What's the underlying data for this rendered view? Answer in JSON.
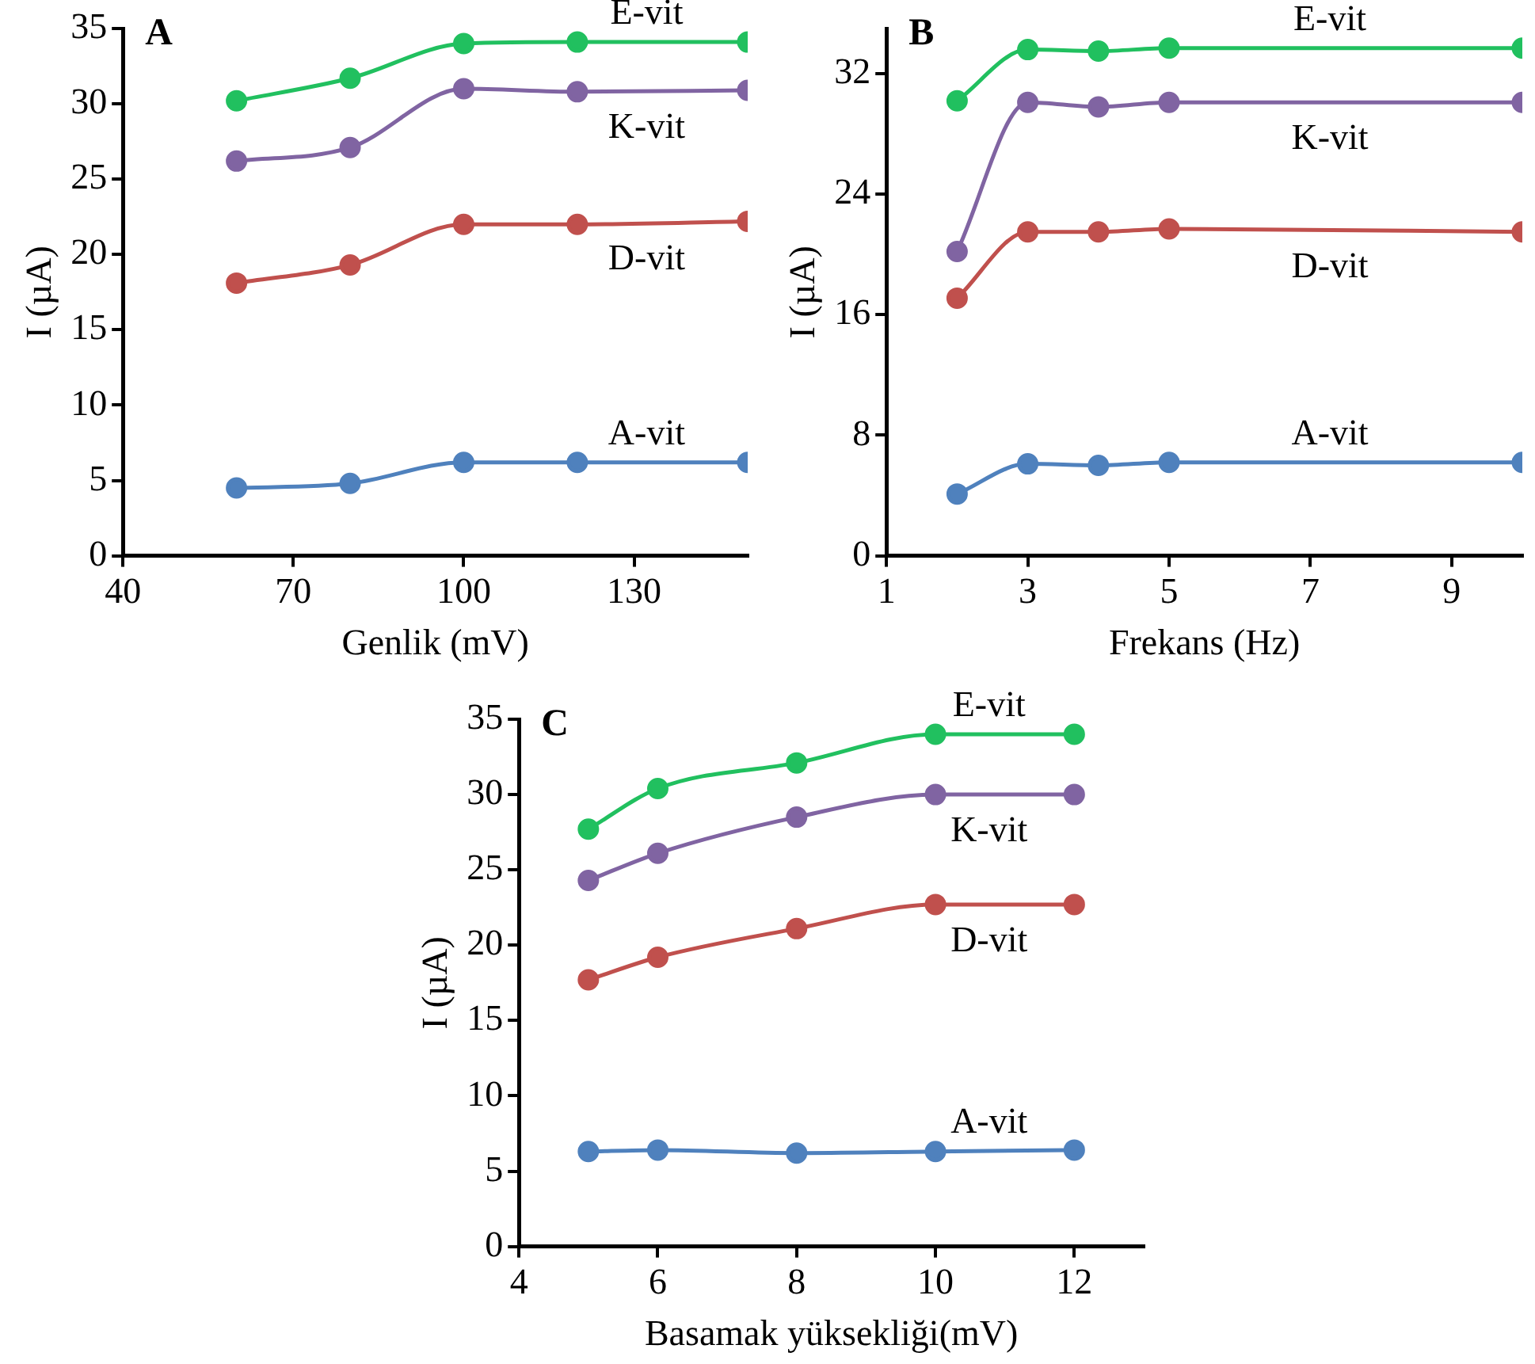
{
  "chart_data": [
    {
      "type": "line",
      "title": "A",
      "xlabel": "Genlik (mV)",
      "ylabel": "I (µA)",
      "x": [
        60,
        80,
        100,
        120,
        150
      ],
      "xlim": [
        40,
        150
      ],
      "xticks": [
        40,
        70,
        100,
        130
      ],
      "ylim": [
        0,
        35
      ],
      "yticks": [
        0,
        5,
        10,
        15,
        20,
        25,
        30,
        35
      ],
      "grid": false,
      "legend": false,
      "marker": "circle",
      "line_style": "solid",
      "series": [
        {
          "name": "E-vit",
          "color": "#21c05f",
          "values": [
            30.2,
            31.7,
            34.0,
            34.1,
            34.1
          ]
        },
        {
          "name": "K-vit",
          "color": "#8064a2",
          "values": [
            26.2,
            27.1,
            31.0,
            30.8,
            30.9
          ]
        },
        {
          "name": "D-vit",
          "color": "#c0504d",
          "values": [
            18.1,
            19.3,
            22.0,
            22.0,
            22.2
          ]
        },
        {
          "name": "A-vit",
          "color": "#4f81bd",
          "values": [
            4.5,
            4.8,
            6.2,
            6.2,
            6.2
          ]
        }
      ]
    },
    {
      "type": "line",
      "title": "B",
      "xlabel": "Frekans (Hz)",
      "ylabel": "I (µA)",
      "x": [
        2,
        3,
        4,
        5,
        10
      ],
      "xlim": [
        1,
        10
      ],
      "xticks": [
        1,
        3,
        5,
        7,
        9
      ],
      "ylim": [
        0,
        35
      ],
      "yticks": [
        0,
        8,
        16,
        24,
        32
      ],
      "grid": false,
      "legend": false,
      "marker": "circle",
      "line_style": "solid",
      "series": [
        {
          "name": "E-vit",
          "color": "#21c05f",
          "values": [
            30.2,
            33.6,
            33.5,
            33.7,
            33.7
          ]
        },
        {
          "name": "K-vit",
          "color": "#8064a2",
          "values": [
            20.2,
            30.1,
            29.8,
            30.1,
            30.1
          ]
        },
        {
          "name": "D-vit",
          "color": "#c0504d",
          "values": [
            17.1,
            21.5,
            21.5,
            21.7,
            21.5
          ]
        },
        {
          "name": "A-vit",
          "color": "#4f81bd",
          "values": [
            4.1,
            6.1,
            6.0,
            6.2,
            6.2
          ]
        }
      ]
    },
    {
      "type": "line",
      "title": "C",
      "xlabel": "Basamak yüksekliği(mV)",
      "ylabel": "I (µA)",
      "x": [
        5,
        6,
        8,
        10,
        12
      ],
      "xlim": [
        4,
        13
      ],
      "xticks": [
        4,
        6,
        8,
        10,
        12
      ],
      "ylim": [
        0,
        35
      ],
      "yticks": [
        0,
        5,
        10,
        15,
        20,
        25,
        30,
        35
      ],
      "grid": false,
      "legend": false,
      "marker": "circle",
      "line_style": "solid",
      "series": [
        {
          "name": "E-vit",
          "color": "#21c05f",
          "values": [
            27.7,
            30.4,
            32.1,
            34.0,
            34.0
          ]
        },
        {
          "name": "K-vit",
          "color": "#8064a2",
          "values": [
            24.3,
            26.1,
            28.5,
            30.0,
            30.0
          ]
        },
        {
          "name": "D-vit",
          "color": "#c0504d",
          "values": [
            17.7,
            19.2,
            21.1,
            22.7,
            22.7
          ]
        },
        {
          "name": "A-vit",
          "color": "#4f81bd",
          "values": [
            6.3,
            6.4,
            6.2,
            6.3,
            6.4
          ]
        }
      ]
    }
  ]
}
